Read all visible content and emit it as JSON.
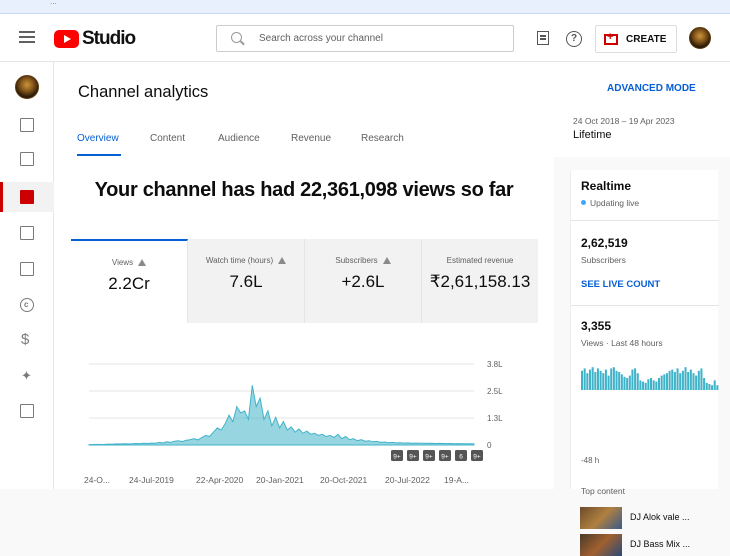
{
  "app": {
    "name": "Studio",
    "brand_color": "#ff0000",
    "accent_color": "#065fd4"
  },
  "topstrip": {
    "text": "..."
  },
  "header": {
    "search_placeholder": "Search across your channel",
    "create_label": "CREATE"
  },
  "page": {
    "title": "Channel analytics",
    "advanced_mode": "ADVANCED MODE",
    "tabs": [
      {
        "label": "Overview",
        "active": true
      },
      {
        "label": "Content"
      },
      {
        "label": "Audience"
      },
      {
        "label": "Revenue"
      },
      {
        "label": "Research"
      }
    ],
    "date_range": "24 Oct 2018 – 19 Apr 2023",
    "date_label": "Lifetime",
    "headline": "Your channel has had 22,361,098 views so far"
  },
  "metrics": [
    {
      "label": "Views",
      "value": "2.2Cr"
    },
    {
      "label": "Watch time (hours)",
      "value": "7.6L"
    },
    {
      "label": "Subscribers",
      "value": "+2.6L"
    },
    {
      "label": "Estimated revenue",
      "value": "₹2,61,158.13"
    }
  ],
  "chart_data": {
    "type": "area",
    "x_ticks": [
      "24-O...",
      "24-Jul-2019",
      "22-Apr-2020",
      "20-Jan-2021",
      "20-Oct-2021",
      "20-Jul-2022",
      "19-A..."
    ],
    "y_ticks": [
      "3.8L",
      "2.5L",
      "1.3L",
      "0"
    ],
    "ylim": [
      0,
      380000
    ],
    "series_color": "#41b3c9",
    "values": [
      2000,
      2500,
      3000,
      2500,
      3000,
      4000,
      3500,
      5000,
      4500,
      6000,
      5000,
      5500,
      7000,
      6500,
      8000,
      7000,
      9000,
      8000,
      12000,
      10000,
      15000,
      12000,
      18000,
      20000,
      16000,
      22000,
      25000,
      30000,
      24000,
      35000,
      45000,
      40000,
      60000,
      80000,
      70000,
      100000,
      140000,
      110000,
      180000,
      150000,
      160000,
      120000,
      280000,
      180000,
      220000,
      120000,
      160000,
      90000,
      130000,
      80000,
      110000,
      70000,
      85000,
      60000,
      75000,
      55000,
      65000,
      50000,
      55000,
      45000,
      50000,
      40000,
      45000,
      35000,
      50000,
      30000,
      40000,
      25000,
      30000,
      20000,
      25000,
      18000,
      20000,
      15000,
      17000,
      12000,
      14000,
      11000,
      12000,
      10000,
      11000,
      9000,
      10000,
      8500,
      9000,
      8000,
      8500,
      7500,
      8000,
      7000,
      7500,
      7000,
      6500,
      7000,
      6000,
      6500,
      6000,
      5500,
      6000,
      5000
    ],
    "markers": [
      "9+",
      "9+",
      "9+",
      "9+",
      "6",
      "9+"
    ]
  },
  "realtime": {
    "title": "Realtime",
    "status": "Updating live",
    "subs_value": "2,62,519",
    "subs_label": "Subscribers",
    "live_link": "SEE LIVE COUNT",
    "views_value": "3,355",
    "views_label": "Views · Last 48 hours",
    "bars_label": "-48 h",
    "bars": [
      0.8,
      0.9,
      0.7,
      0.85,
      0.95,
      0.75,
      0.9,
      0.8,
      0.7,
      0.85,
      0.6,
      0.9,
      0.95,
      0.8,
      0.75,
      0.65,
      0.55,
      0.5,
      0.6,
      0.85,
      0.9,
      0.7,
      0.4,
      0.35,
      0.3,
      0.45,
      0.5,
      0.4,
      0.35,
      0.5,
      0.6,
      0.65,
      0.7,
      0.8,
      0.85,
      0.75,
      0.9,
      0.7,
      0.8,
      0.95,
      0.75,
      0.85,
      0.7,
      0.6,
      0.8,
      0.9,
      0.5,
      0.3,
      0.25,
      0.2,
      0.4,
      0.2
    ],
    "top_content_label": "Top content",
    "top_content_items": [
      {
        "title": "DJ Alok vale ..."
      },
      {
        "title": "DJ Bass Mix ..."
      }
    ]
  }
}
